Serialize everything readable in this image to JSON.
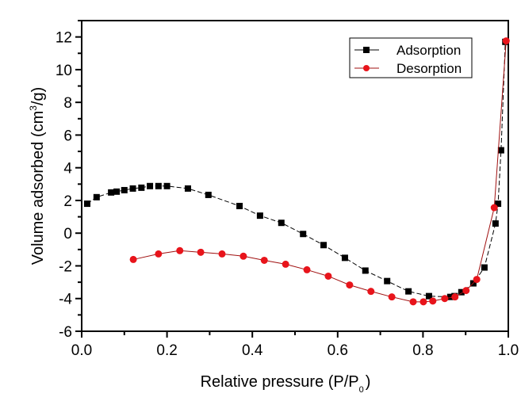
{
  "chart_data": {
    "type": "scatter",
    "title": "",
    "xlabel": "Relative pressure (P/P",
    "xlabel_sub": "0",
    "xlabel_close": ")",
    "ylabel": "Volume adsorbed (cm",
    "ylabel_sup": "3",
    "ylabel_close": "/g)",
    "xlim": [
      0.0,
      1.0
    ],
    "ylim": [
      -6,
      13
    ],
    "xticks": [
      0.0,
      0.2,
      0.4,
      0.6,
      0.8,
      1.0
    ],
    "xtick_labels": [
      "0.0",
      "0.2",
      "0.4",
      "0.6",
      "0.8",
      "1.0"
    ],
    "xminor_step": 0.1,
    "yticks": [
      -6,
      -4,
      -2,
      0,
      2,
      4,
      6,
      8,
      10,
      12
    ],
    "ytick_labels": [
      "-6",
      "-4",
      "-2",
      "0",
      "2",
      "4",
      "6",
      "8",
      "10",
      "12"
    ],
    "yminor_step": 1,
    "grid": false,
    "legend_position": "top-right",
    "series": [
      {
        "name": "Adsorption",
        "color": "#000000",
        "marker": "square",
        "x": [
          0.013,
          0.035,
          0.069,
          0.082,
          0.1,
          0.12,
          0.14,
          0.16,
          0.18,
          0.2,
          0.249,
          0.297,
          0.37,
          0.418,
          0.468,
          0.519,
          0.567,
          0.617,
          0.665,
          0.716,
          0.766,
          0.814,
          0.864,
          0.874,
          0.89,
          0.918,
          0.944,
          0.97,
          0.976,
          0.983,
          0.993
        ],
        "y": [
          1.8,
          2.2,
          2.49,
          2.54,
          2.63,
          2.73,
          2.78,
          2.88,
          2.88,
          2.88,
          2.73,
          2.34,
          1.66,
          1.07,
          0.63,
          -0.05,
          -0.73,
          -1.51,
          -2.29,
          -2.93,
          -3.56,
          -3.85,
          -3.9,
          -3.85,
          -3.61,
          -3.07,
          -2.1,
          0.59,
          1.8,
          5.07,
          11.7
        ]
      },
      {
        "name": "Desorption",
        "color": "#e8141b",
        "line_color": "#a01010",
        "marker": "circle",
        "x": [
          0.121,
          0.18,
          0.23,
          0.279,
          0.329,
          0.379,
          0.428,
          0.478,
          0.528,
          0.578,
          0.628,
          0.678,
          0.727,
          0.777,
          0.801,
          0.823,
          0.851,
          0.875,
          0.901,
          0.926,
          0.967,
          0.995
        ],
        "y": [
          -1.61,
          -1.27,
          -1.07,
          -1.17,
          -1.27,
          -1.41,
          -1.66,
          -1.9,
          -2.24,
          -2.63,
          -3.17,
          -3.56,
          -3.9,
          -4.2,
          -4.2,
          -4.15,
          -4.0,
          -3.9,
          -3.51,
          -2.83,
          1.56,
          11.76
        ]
      }
    ]
  }
}
